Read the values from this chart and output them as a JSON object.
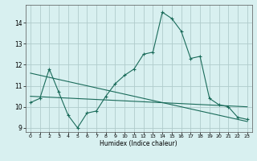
{
  "title": "",
  "xlabel": "Humidex (Indice chaleur)",
  "ylabel": "",
  "bg_color": "#d8f0f0",
  "grid_color": "#b0cccc",
  "line_color": "#1a6b5a",
  "xlim": [
    -0.5,
    23.5
  ],
  "ylim": [
    8.8,
    14.85
  ],
  "yticks": [
    9,
    10,
    11,
    12,
    13,
    14
  ],
  "xticks": [
    0,
    1,
    2,
    3,
    4,
    5,
    6,
    7,
    8,
    9,
    10,
    11,
    12,
    13,
    14,
    15,
    16,
    17,
    18,
    19,
    20,
    21,
    22,
    23
  ],
  "series1_x": [
    0,
    1,
    2,
    3,
    4,
    5,
    6,
    7,
    8,
    9,
    10,
    11,
    12,
    13,
    14,
    15,
    16,
    17,
    18,
    19,
    20,
    21,
    22,
    23
  ],
  "series1_y": [
    10.2,
    10.4,
    11.8,
    10.7,
    9.6,
    9.0,
    9.7,
    9.8,
    10.5,
    11.1,
    11.5,
    11.8,
    12.5,
    12.6,
    14.5,
    14.2,
    13.6,
    12.3,
    12.4,
    10.4,
    10.1,
    10.0,
    9.5,
    9.4
  ],
  "series2_x": [
    0,
    23
  ],
  "series2_y": [
    11.6,
    9.3
  ],
  "series3_x": [
    0,
    23
  ],
  "series3_y": [
    10.5,
    10.0
  ]
}
